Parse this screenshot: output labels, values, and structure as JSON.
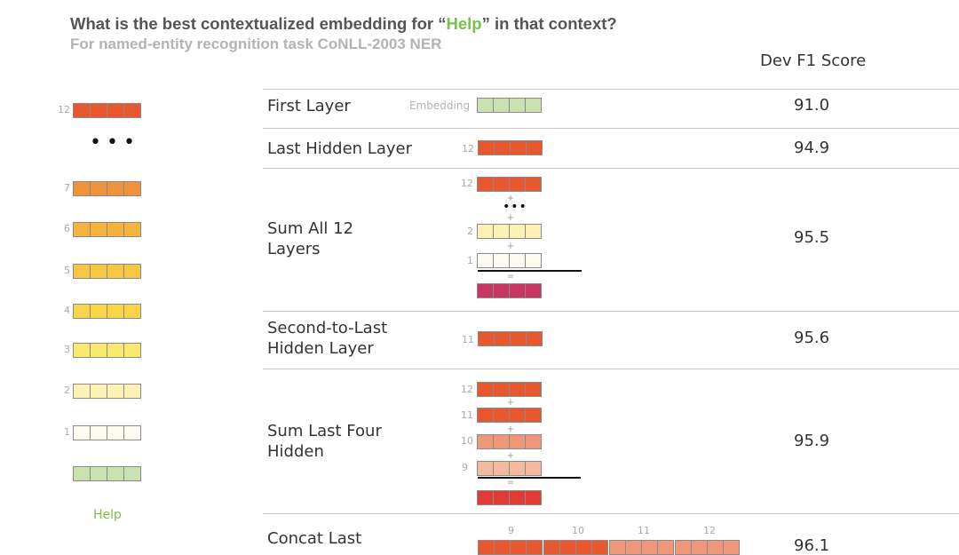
{
  "header": {
    "title_pre": "What is the best contextualized embedding for “",
    "title_highlight": "Help",
    "title_post": "” in that context?",
    "subtitle": "For named-entity recognition task CoNLL-2003 NER",
    "score_column": "Dev F1 Score"
  },
  "colors": {
    "l12": "#e8582f",
    "l11": "#e8582f",
    "l10": "#f0977a",
    "l9": "#f5b9a0",
    "l7": "#f0923a",
    "l6": "#f5b33d",
    "l5": "#f7c744",
    "l4": "#f9d348",
    "l3": "#fbe96e",
    "l2": "#fdf2b3",
    "l1": "#fdfbef",
    "embedding": "#c9e2b0",
    "sum_all": "#c83564",
    "sum_four": "#e03b34",
    "help_green": "#7cbf4a"
  },
  "stack": {
    "layers": [
      "12",
      "7",
      "6",
      "5",
      "4",
      "3",
      "2",
      "1"
    ],
    "token": "Help"
  },
  "methods": [
    {
      "label": "First Layer",
      "score": "91.0",
      "visual_label": "Embedding",
      "layers": []
    },
    {
      "label": "Last Hidden Layer",
      "score": "94.9",
      "layers": [
        "12"
      ]
    },
    {
      "label": "Sum All 12 Layers",
      "score": "95.5",
      "layers": [
        "12",
        "2",
        "1"
      ],
      "operator": "+",
      "result": "="
    },
    {
      "label": "Second-to-Last Hidden Layer",
      "score": "95.6",
      "layers": [
        "11"
      ]
    },
    {
      "label": "Sum Last Four Hidden",
      "score": "95.9",
      "layers": [
        "12",
        "11",
        "10",
        "9"
      ],
      "operator": "+",
      "result": "="
    },
    {
      "label": "Concat Last",
      "score": "96.1",
      "layers": [
        "9",
        "10",
        "11",
        "12"
      ]
    }
  ]
}
